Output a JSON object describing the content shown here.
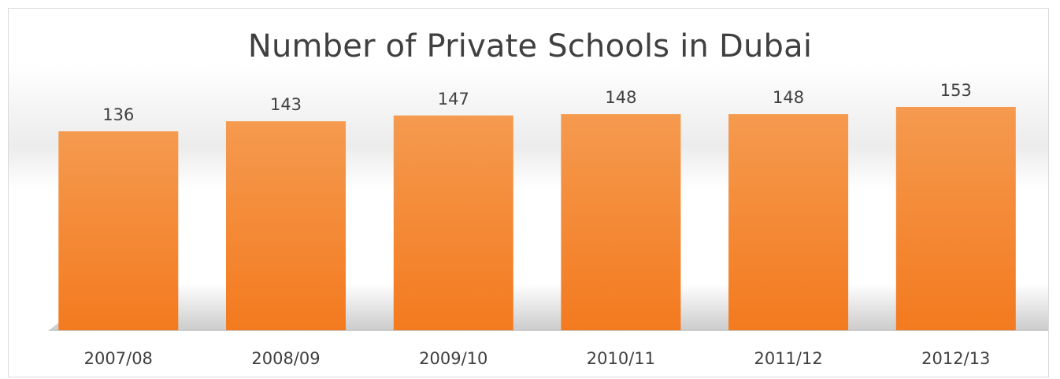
{
  "chart_data": {
    "type": "bar",
    "title": "Number of Private Schools in Dubai",
    "categories": [
      "2007/08",
      "2008/09",
      "2009/10",
      "2010/11",
      "2011/12",
      "2012/13"
    ],
    "values": [
      136,
      143,
      147,
      148,
      148,
      153
    ],
    "xlabel": "",
    "ylabel": "",
    "grid": false,
    "bar_color_top": "#f59a4f",
    "bar_color_bottom": "#f37a1f",
    "text_color": "#404040"
  }
}
